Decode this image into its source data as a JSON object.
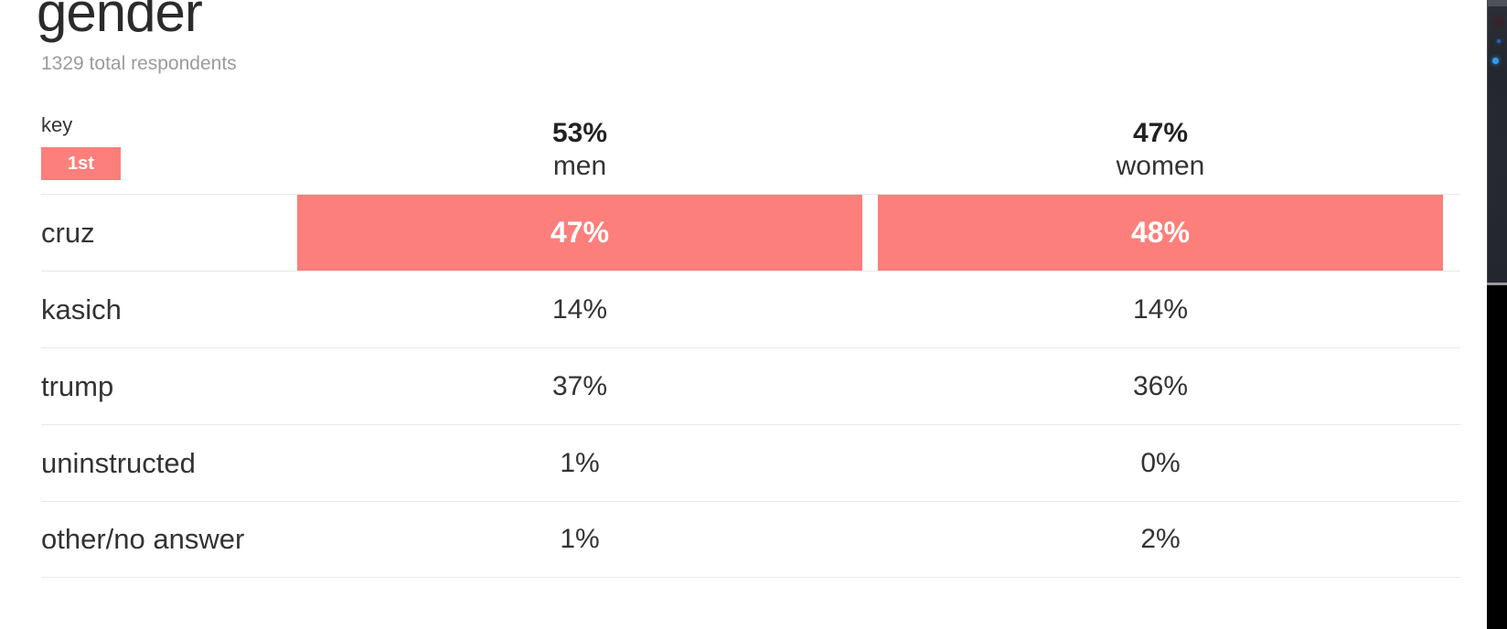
{
  "header": {
    "title": "gender",
    "subtitle": "1329 total respondents"
  },
  "key": {
    "label": "key",
    "first_badge": "1st"
  },
  "table": {
    "column_headers": [
      {
        "share": "53%",
        "label": "men"
      },
      {
        "share": "47%",
        "label": "women"
      }
    ],
    "rows": [
      {
        "label": "cruz",
        "values": [
          "47%",
          "48%"
        ],
        "winner": true
      },
      {
        "label": "kasich",
        "values": [
          "14%",
          "14%"
        ],
        "winner": false
      },
      {
        "label": "trump",
        "values": [
          "37%",
          "36%"
        ],
        "winner": false
      },
      {
        "label": "uninstructed",
        "values": [
          "1%",
          "0%"
        ],
        "winner": false
      },
      {
        "label": "other/no answer",
        "values": [
          "1%",
          "2%"
        ],
        "winner": false
      }
    ]
  },
  "colors": {
    "accent": "#fc7f7b",
    "separator": "#e8e8e8",
    "subtitle_gray": "#9b9b9b",
    "text_dark": "#2b2b2b"
  },
  "chart_data": {
    "type": "table",
    "title": "gender",
    "subtitle": "1329 total respondents",
    "total_respondents": 1329,
    "groups": [
      {
        "label": "men",
        "share_pct": 53
      },
      {
        "label": "women",
        "share_pct": 47
      }
    ],
    "categories": [
      "cruz",
      "kasich",
      "trump",
      "uninstructed",
      "other/no answer"
    ],
    "series": [
      {
        "name": "men",
        "values_pct": [
          47,
          14,
          37,
          1,
          1
        ]
      },
      {
        "name": "women",
        "values_pct": [
          48,
          14,
          36,
          0,
          2
        ]
      }
    ],
    "legend": "1st place response shaded in accent color",
    "winner": "cruz"
  }
}
